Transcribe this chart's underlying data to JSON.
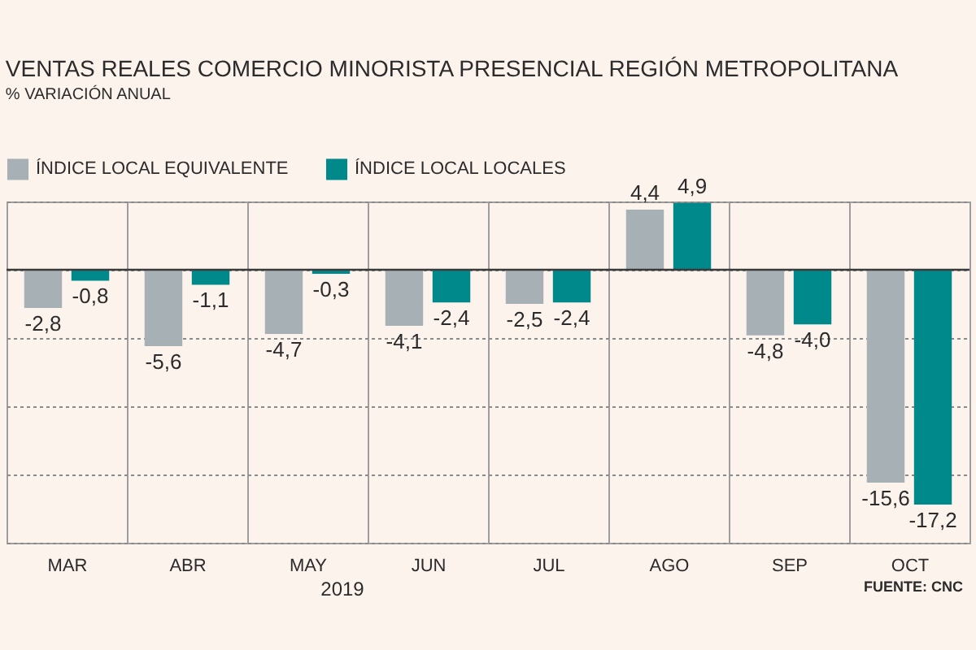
{
  "chart_data": {
    "type": "bar",
    "title": "VENTAS REALES COMERCIO MINORISTA PRESENCIAL REGIÓN METROPOLITANA",
    "subtitle": "% VARIACIÓN ANUAL",
    "xlabel": "2019",
    "categories": [
      "MAR",
      "ABR",
      "MAY",
      "JUN",
      "JUL",
      "AGO",
      "SEP",
      "OCT"
    ],
    "series": [
      {
        "name": "ÍNDICE LOCAL EQUIVALENTE",
        "color": "#a7b1b5",
        "values": [
          -2.8,
          -5.6,
          -4.7,
          -4.1,
          -2.5,
          4.4,
          -4.8,
          -15.6
        ],
        "value_labels": [
          "-2,8",
          "-5,6",
          "-4,7",
          "-4,1",
          "-2,5",
          "4,4",
          "-4,8",
          "-15,6"
        ]
      },
      {
        "name": "ÍNDICE LOCAL LOCALES",
        "color": "#00898b",
        "values": [
          -0.8,
          -1.1,
          -0.3,
          -2.4,
          -2.4,
          4.9,
          -4.0,
          -17.2
        ],
        "value_labels": [
          "-0,8",
          "-1,1",
          "-0,3",
          "-2,4",
          "-2,4",
          "4,9",
          "-4,0",
          "-17,2"
        ]
      }
    ],
    "ylim": [
      -20,
      5
    ],
    "yticks": [
      {
        "value": 5,
        "label": null
      },
      {
        "value": 0,
        "label": null
      },
      {
        "value": -5,
        "label": null
      },
      {
        "value": -10,
        "label": null
      },
      {
        "value": -15,
        "label": null
      },
      {
        "value": -20,
        "label": null
      }
    ],
    "tick_labels": "x",
    "grid": true,
    "legend": "top left",
    "ref_lines": [
      {
        "axis": "y",
        "value": 0,
        "color": "#3a3a3a"
      }
    ],
    "annotations": [
      "FUENTE: CNC"
    ]
  }
}
